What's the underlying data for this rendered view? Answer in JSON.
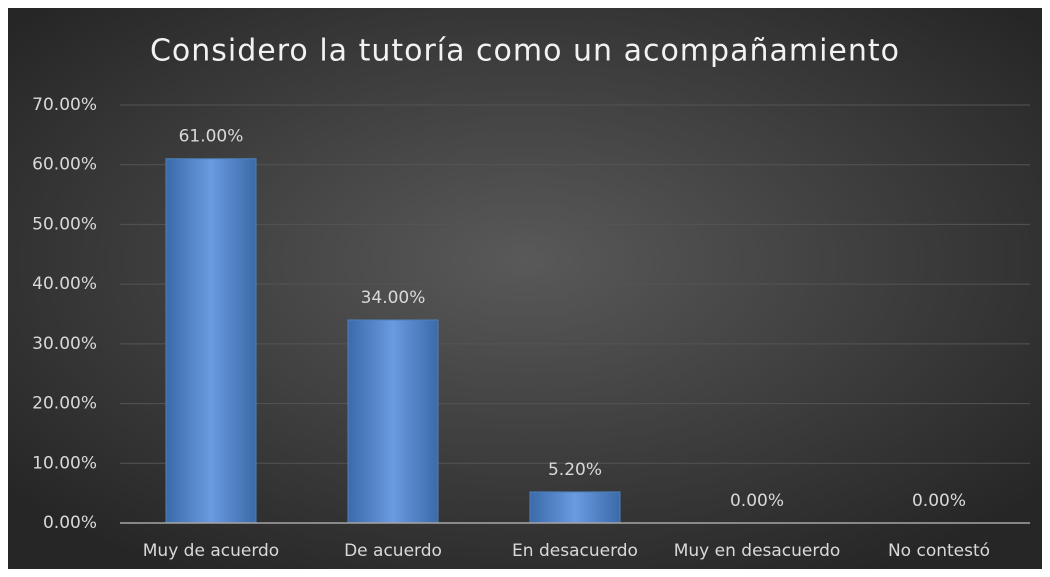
{
  "chart_data": {
    "type": "bar",
    "title": "Considero la tutoría como un acompañamiento",
    "categories": [
      "Muy de acuerdo",
      "De acuerdo",
      "En desacuerdo",
      "Muy en desacuerdo",
      "No contestó"
    ],
    "values": [
      61,
      34,
      5.2,
      0,
      0
    ],
    "value_labels": [
      "61.00%",
      "34.00%",
      "5.20%",
      "0.00%",
      "0.00%"
    ],
    "color": "#4f81bd",
    "ylim": [
      0,
      70
    ],
    "yticks": [
      {
        "value": 0,
        "label": "0.00%"
      },
      {
        "value": 10,
        "label": "10.00%"
      },
      {
        "value": 20,
        "label": "20.00%"
      },
      {
        "value": 30,
        "label": "30.00%"
      },
      {
        "value": 40,
        "label": "40.00%"
      },
      {
        "value": 50,
        "label": "50.00%"
      },
      {
        "value": 60,
        "label": "60.00%"
      },
      {
        "value": 70,
        "label": "70.00%"
      }
    ],
    "grid": true
  }
}
